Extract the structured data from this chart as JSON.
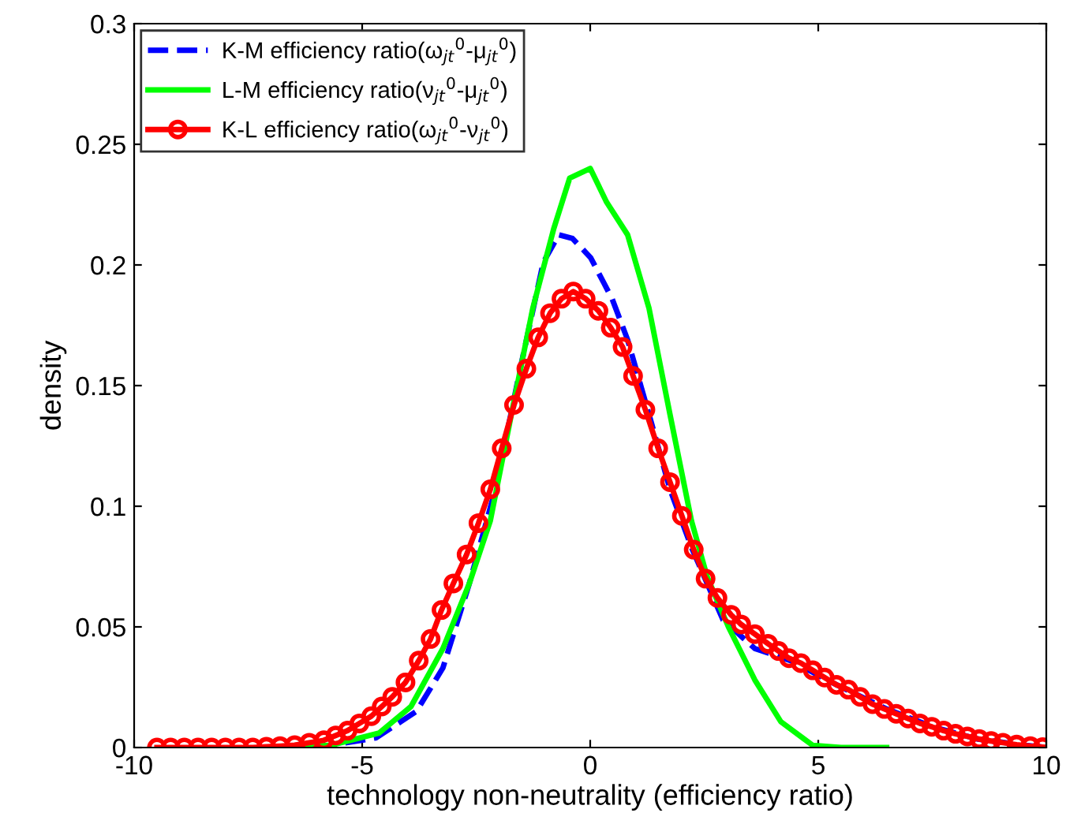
{
  "chart_data": {
    "type": "line",
    "xlabel": "technology non-neutrality (efficiency ratio)",
    "ylabel": "density",
    "xlim": [
      -10,
      10
    ],
    "xticks": [
      -10,
      -5,
      0,
      5,
      10
    ],
    "ylim": [
      0,
      0.3
    ],
    "yticks": [
      0,
      0.05,
      0.1,
      0.15,
      0.2,
      0.25,
      0.3
    ],
    "grid": false,
    "legend": "top left",
    "series": [
      {
        "name": "K-M efficiency ratio(ω$_{jt}$$^{0}$-μ$_{jt}$$^{0}$)",
        "color": "#0000ff",
        "line_style": "dashed",
        "marker": "none",
        "x": [
          -6,
          -4.7,
          -3.81,
          -3.23,
          -2.65,
          -2.08,
          -1.5,
          -1.03,
          -0.69,
          -0.39,
          0.01,
          0.48,
          0.82,
          1.29,
          1.75,
          2.22,
          2.68,
          2.91,
          3.61,
          4.4,
          5.4,
          6.5,
          7.5,
          8.5,
          9.5,
          10
        ],
        "values": [
          0,
          0.004,
          0.015,
          0.033,
          0.068,
          0.107,
          0.16,
          0.201,
          0.2125,
          0.211,
          0.203,
          0.186,
          0.169,
          0.138,
          0.107,
          0.083,
          0.063,
          0.053,
          0.041,
          0.036,
          0.026,
          0.016,
          0.0086,
          0.0035,
          0.001,
          0
        ]
      },
      {
        "name": "L-M efficiency ratio(ν$_{jt}$$^{0}$-μ$_{jt}$$^{0}$)",
        "color": "#00ff00",
        "line_style": "solid",
        "marker": "none",
        "x": [
          -6.5,
          -5.67,
          -4.63,
          -3.93,
          -3.23,
          -2.65,
          -2.19,
          -1.73,
          -1.26,
          -0.8,
          -0.45,
          0,
          0.36,
          0.82,
          1.29,
          1.75,
          2.22,
          2.56,
          3.03,
          3.61,
          4.18,
          4.88,
          5.5,
          6.5
        ],
        "values": [
          0,
          0.001,
          0.006,
          0.017,
          0.041,
          0.068,
          0.094,
          0.138,
          0.182,
          0.215,
          0.236,
          0.24,
          0.226,
          0.2125,
          0.182,
          0.138,
          0.094,
          0.071,
          0.05,
          0.028,
          0.0107,
          0.0009,
          0,
          0
        ]
      },
      {
        "name": "K-L efficiency ratio(ω$_{jt}$$^{0}$-ν$_{jt}$$^{0}$)",
        "color": "#ff0000",
        "line_style": "solid",
        "marker": "circle",
        "x": [
          -9.5,
          -9.2,
          -8.9,
          -8.6,
          -8.3,
          -8.0,
          -7.7,
          -7.4,
          -7.1,
          -6.8,
          -6.48,
          -6.16,
          -5.84,
          -5.58,
          -5.32,
          -5.06,
          -4.8,
          -4.57,
          -4.34,
          -4.05,
          -3.76,
          -3.5,
          -3.26,
          -3.0,
          -2.71,
          -2.45,
          -2.19,
          -1.94,
          -1.67,
          -1.4,
          -1.14,
          -0.88,
          -0.63,
          -0.37,
          -0.1,
          0.18,
          0.45,
          0.71,
          0.94,
          1.21,
          1.49,
          1.75,
          2.01,
          2.27,
          2.53,
          2.79,
          3.09,
          3.31,
          3.61,
          3.9,
          4.13,
          4.36,
          4.62,
          4.88,
          5.14,
          5.4,
          5.66,
          5.92,
          6.19,
          6.45,
          6.71,
          6.97,
          7.23,
          7.49,
          7.75,
          8.01,
          8.27,
          8.53,
          8.79,
          9.05,
          9.35,
          9.65,
          9.92
        ],
        "values": [
          0,
          0,
          0,
          0,
          0,
          0,
          0,
          0,
          0.0003,
          0.0006,
          0.001,
          0.002,
          0.003,
          0.005,
          0.007,
          0.01,
          0.013,
          0.017,
          0.021,
          0.027,
          0.036,
          0.045,
          0.057,
          0.068,
          0.08,
          0.093,
          0.107,
          0.124,
          0.142,
          0.157,
          0.17,
          0.18,
          0.186,
          0.189,
          0.186,
          0.181,
          0.174,
          0.166,
          0.154,
          0.14,
          0.124,
          0.11,
          0.096,
          0.082,
          0.07,
          0.062,
          0.055,
          0.051,
          0.047,
          0.043,
          0.04,
          0.037,
          0.035,
          0.032,
          0.029,
          0.026,
          0.024,
          0.021,
          0.018,
          0.016,
          0.014,
          0.012,
          0.01,
          0.0086,
          0.007,
          0.0057,
          0.0046,
          0.0035,
          0.0027,
          0.002,
          0.0012,
          0.0006,
          0.0002
        ]
      }
    ]
  }
}
